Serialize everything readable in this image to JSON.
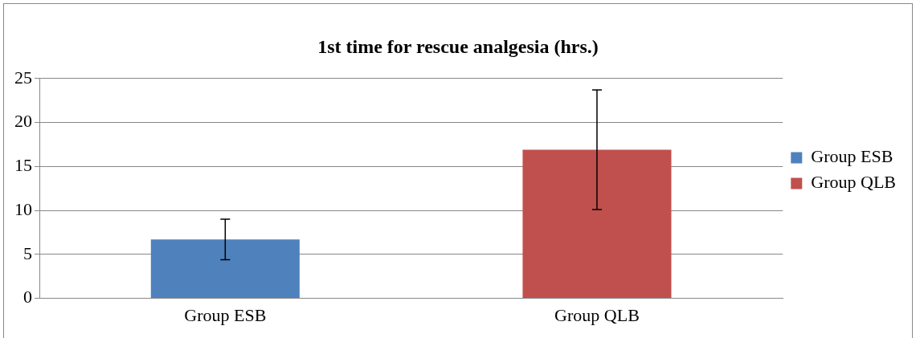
{
  "chart_data": {
    "type": "bar",
    "title": "1st time for rescue analgesia (hrs.)",
    "categories": [
      "Group ESB",
      "Group QLB"
    ],
    "series": [
      {
        "name": "Group ESB",
        "color": "#4f81bd",
        "values": [
          6.7,
          null
        ],
        "errors": [
          2.3,
          null
        ]
      },
      {
        "name": "Group QLB",
        "color": "#c0504d",
        "values": [
          null,
          16.9
        ],
        "errors": [
          null,
          6.8
        ]
      }
    ],
    "ylim": [
      0,
      25
    ],
    "yticks": [
      0,
      5,
      10,
      15,
      20,
      25
    ],
    "grid": "y",
    "legend": "right"
  }
}
